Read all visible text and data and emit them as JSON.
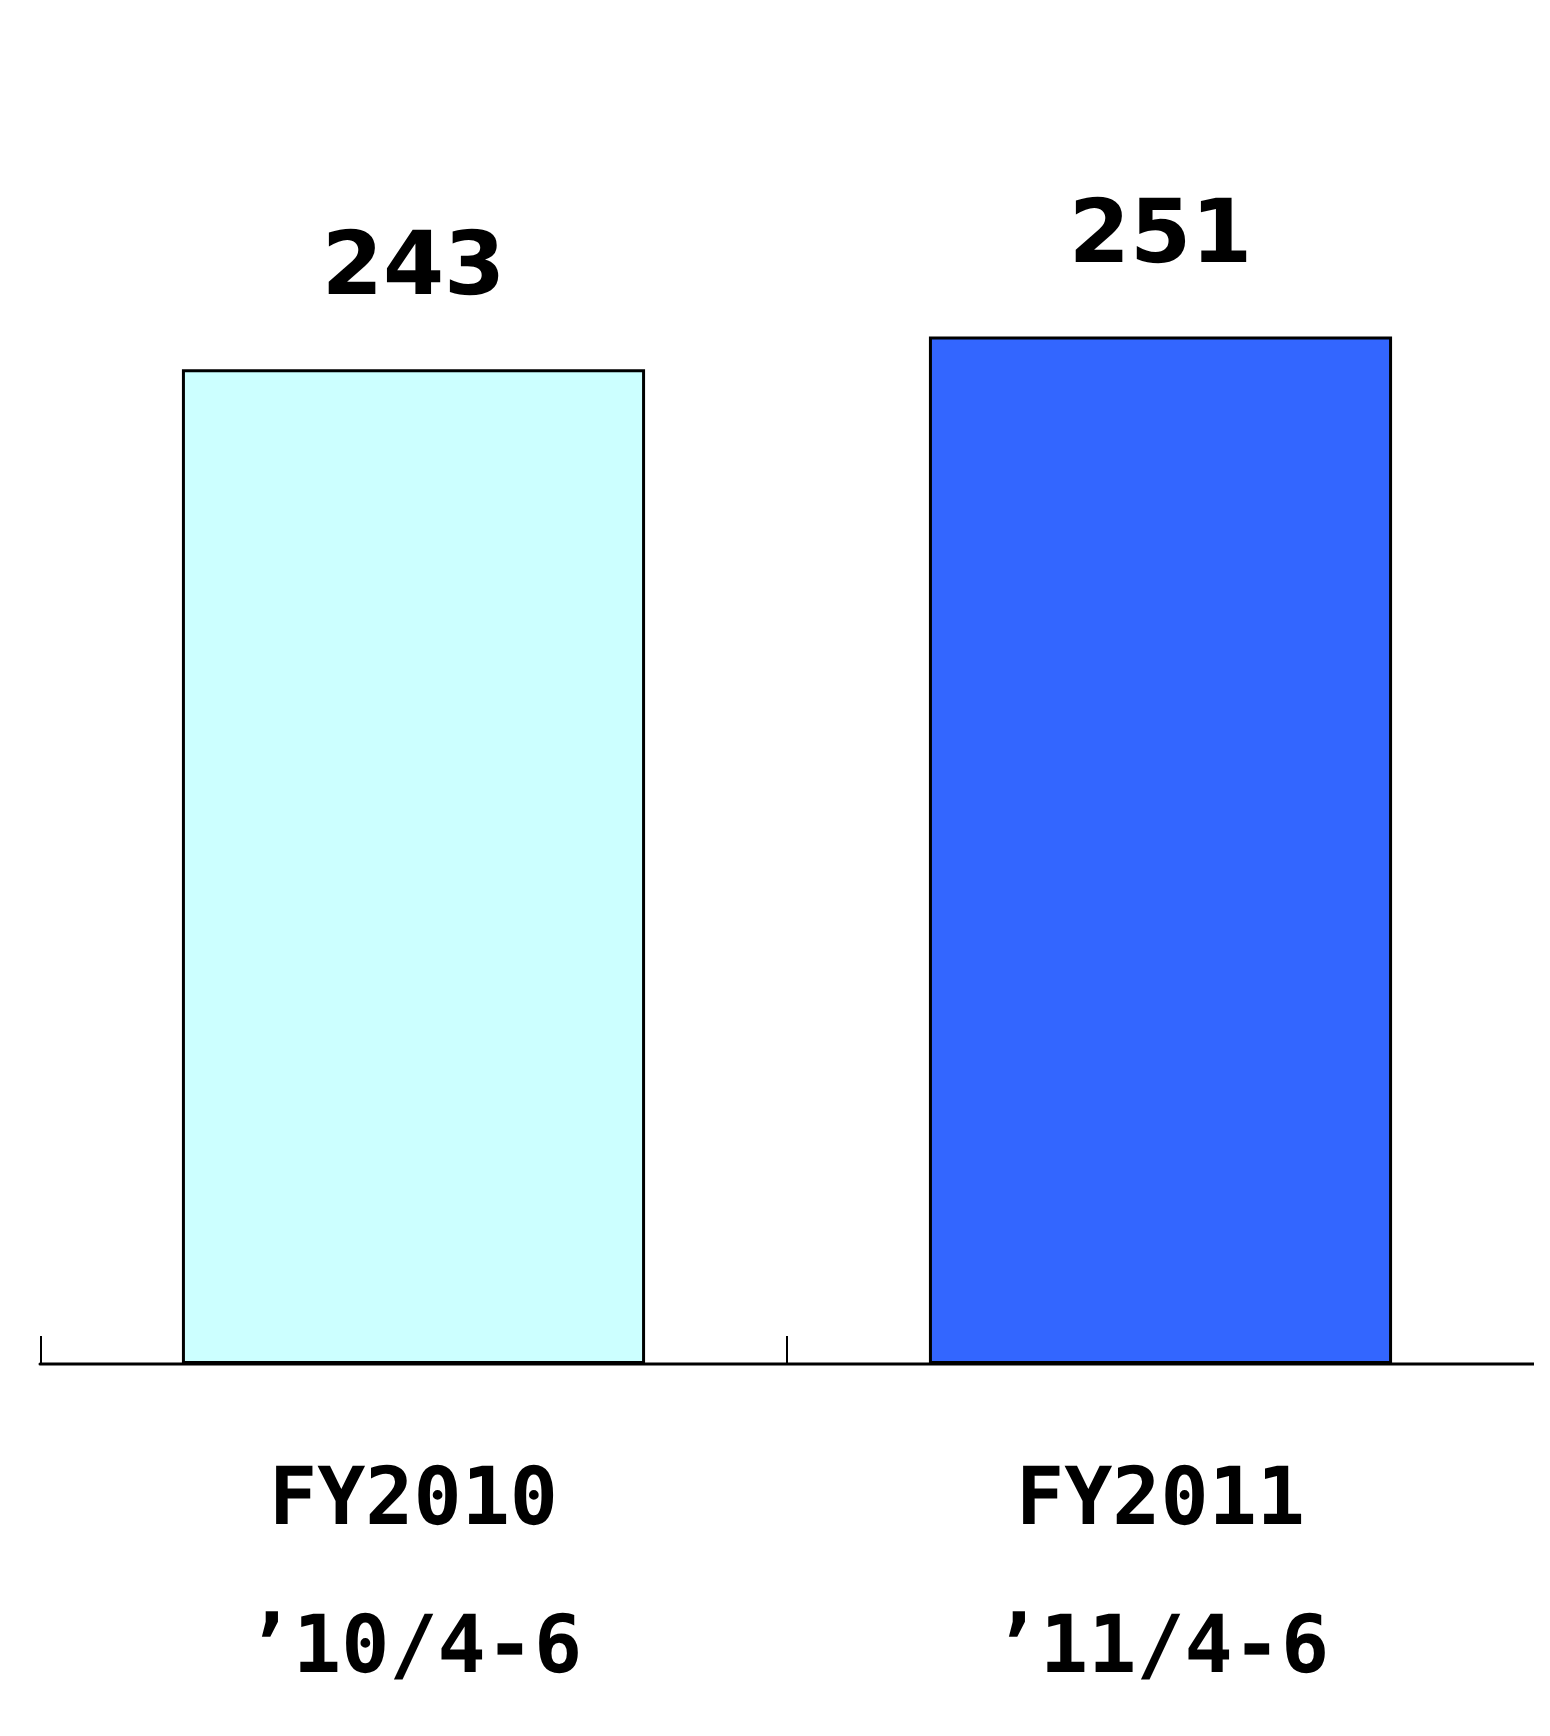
{
  "chart_data": {
    "type": "bar",
    "categories": [
      "FY2010\n’10/4-6",
      "FY2011\n’11/4-6"
    ],
    "values": [
      243,
      251
    ],
    "colors": [
      "#ccffff",
      "#3366ff"
    ],
    "data_labels": true
  }
}
